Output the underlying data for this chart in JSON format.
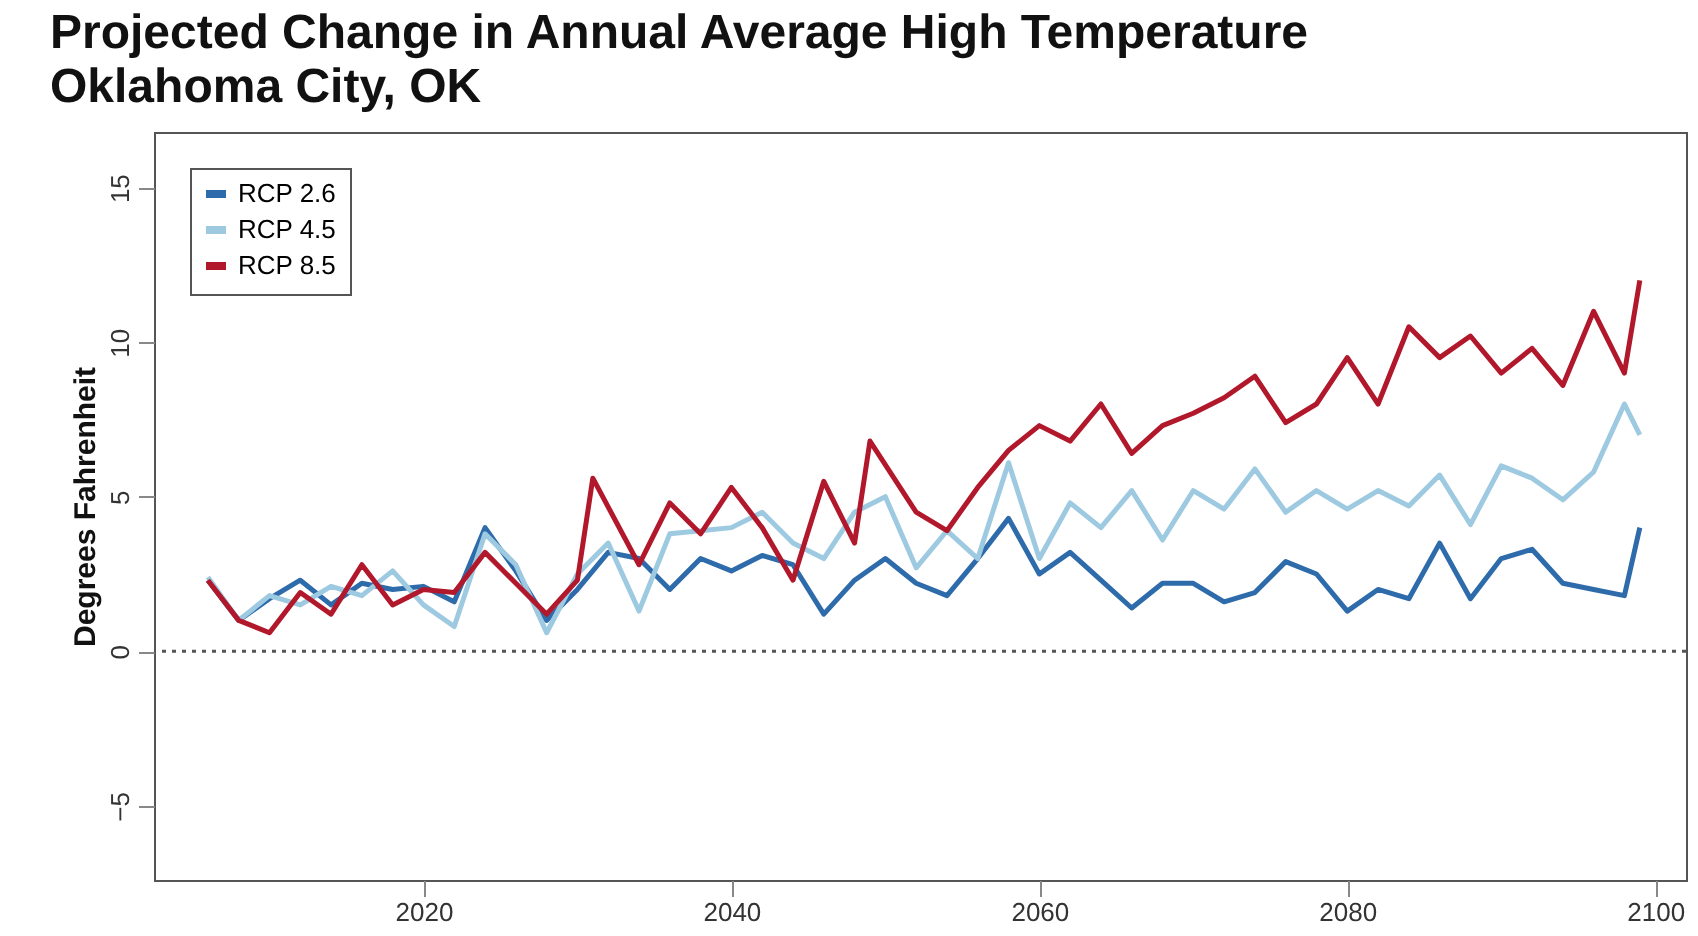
{
  "chart_data": {
    "type": "line",
    "title": "Projected Change in Annual Average High Temperature",
    "subtitle": "Oklahoma City, OK",
    "ylabel": "Degrees Fahrenheit",
    "xlim": [
      2002.5,
      2102
    ],
    "xticks": [
      2020,
      2040,
      2060,
      2080,
      2100
    ],
    "ylim": [
      -7.4,
      16.8
    ],
    "yticks": [
      -5,
      0,
      5,
      10,
      15
    ],
    "grid": false,
    "legend": "top left",
    "line_style": "solid",
    "ref_lines": [
      {
        "axis": "y",
        "value": 0,
        "color": "#555555",
        "line_style": "dotted"
      }
    ],
    "series": [
      {
        "name": "RCP 2.6",
        "color": "#2e6bab",
        "x": [
          2006,
          2008,
          2010,
          2012,
          2014,
          2016,
          2018,
          2020,
          2022,
          2024,
          2026,
          2028,
          2030,
          2032,
          2034,
          2036,
          2038,
          2040,
          2042,
          2044,
          2046,
          2048,
          2050,
          2052,
          2054,
          2056,
          2058,
          2060,
          2062,
          2064,
          2066,
          2068,
          2070,
          2072,
          2074,
          2076,
          2078,
          2080,
          2082,
          2084,
          2086,
          2088,
          2090,
          2092,
          2094,
          2096,
          2098,
          2099
        ],
        "values": [
          2.3,
          1.0,
          1.7,
          2.3,
          1.5,
          2.2,
          2.0,
          2.1,
          1.6,
          4.0,
          2.6,
          1.0,
          2.0,
          3.2,
          3.0,
          2.0,
          3.0,
          2.6,
          3.1,
          2.8,
          1.2,
          2.3,
          3.0,
          2.2,
          1.8,
          3.0,
          4.3,
          2.5,
          3.2,
          2.3,
          1.4,
          2.2,
          2.2,
          1.6,
          1.9,
          2.9,
          2.5,
          1.3,
          2.0,
          1.7,
          3.5,
          1.7,
          3.0,
          3.3,
          2.2,
          2.0,
          1.8,
          4.0
        ]
      },
      {
        "name": "RCP 4.5",
        "color": "#9ecae1",
        "x": [
          2006,
          2008,
          2010,
          2012,
          2014,
          2016,
          2018,
          2020,
          2022,
          2024,
          2026,
          2028,
          2030,
          2032,
          2034,
          2036,
          2038,
          2040,
          2042,
          2044,
          2046,
          2048,
          2050,
          2052,
          2054,
          2056,
          2058,
          2060,
          2062,
          2064,
          2066,
          2068,
          2070,
          2072,
          2074,
          2076,
          2078,
          2080,
          2082,
          2084,
          2086,
          2088,
          2090,
          2092,
          2094,
          2096,
          2098,
          2099
        ],
        "values": [
          2.4,
          1.0,
          1.8,
          1.5,
          2.1,
          1.8,
          2.6,
          1.5,
          0.8,
          3.8,
          2.8,
          0.6,
          2.5,
          3.5,
          1.3,
          3.8,
          3.9,
          4.0,
          4.5,
          3.5,
          3.0,
          4.5,
          5.0,
          2.7,
          3.9,
          3.0,
          6.1,
          3.0,
          4.8,
          4.0,
          5.2,
          3.6,
          5.2,
          4.6,
          5.9,
          4.5,
          5.2,
          4.6,
          5.2,
          4.7,
          5.7,
          4.1,
          6.0,
          5.6,
          4.9,
          5.8,
          8.0,
          7.0
        ]
      },
      {
        "name": "RCP 8.5",
        "color": "#b2182b",
        "x": [
          2006,
          2008,
          2010,
          2012,
          2014,
          2016,
          2018,
          2020,
          2022,
          2024,
          2026,
          2028,
          2030,
          2031,
          2034,
          2036,
          2038,
          2040,
          2042,
          2044,
          2046,
          2048,
          2049,
          2052,
          2054,
          2056,
          2058,
          2060,
          2062,
          2064,
          2066,
          2068,
          2070,
          2072,
          2074,
          2076,
          2078,
          2080,
          2082,
          2084,
          2086,
          2088,
          2090,
          2092,
          2094,
          2096,
          2098,
          2099
        ],
        "values": [
          2.3,
          1.0,
          0.6,
          1.9,
          1.2,
          2.8,
          1.5,
          2.0,
          1.9,
          3.2,
          2.2,
          1.2,
          2.3,
          5.6,
          2.8,
          4.8,
          3.8,
          5.3,
          4.0,
          2.3,
          5.5,
          3.5,
          6.8,
          4.5,
          3.9,
          5.3,
          6.5,
          7.3,
          6.8,
          8.0,
          6.4,
          7.3,
          7.7,
          8.2,
          8.9,
          7.4,
          8.0,
          9.5,
          8.0,
          10.5,
          9.5,
          10.2,
          9.0,
          9.8,
          8.6,
          11.0,
          9.0,
          12.0
        ]
      }
    ]
  }
}
